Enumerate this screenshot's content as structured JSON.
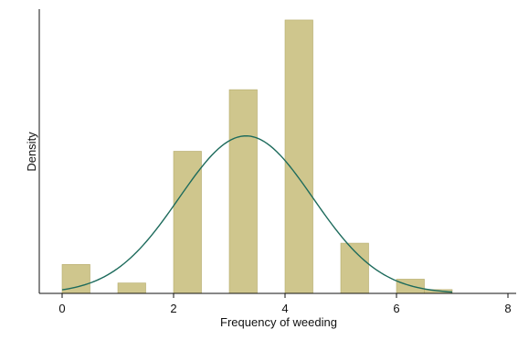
{
  "chart_data": {
    "type": "bar",
    "title": "",
    "xlabel": "Frequency of weeding",
    "ylabel": "Density",
    "xlim": [
      -0.5,
      8.2
    ],
    "ylim": [
      0,
      0.6
    ],
    "xticks": [
      "0",
      "2",
      "4",
      "6",
      "8"
    ],
    "y_ticks_labeled": false,
    "grid": false,
    "legend": "none",
    "bars": [
      {
        "x_start": 0.0,
        "x_end": 0.5,
        "density": 0.061
      },
      {
        "x_start": 1.0,
        "x_end": 1.5,
        "density": 0.022
      },
      {
        "x_start": 2.0,
        "x_end": 2.5,
        "density": 0.3
      },
      {
        "x_start": 3.0,
        "x_end": 3.5,
        "density": 0.43
      },
      {
        "x_start": 4.0,
        "x_end": 4.5,
        "density": 0.577
      },
      {
        "x_start": 5.0,
        "x_end": 5.5,
        "density": 0.106
      },
      {
        "x_start": 6.0,
        "x_end": 6.5,
        "density": 0.03
      },
      {
        "x_start": 6.5,
        "x_end": 7.0,
        "density": 0.008
      }
    ],
    "normal_overlay": {
      "mean": 3.3,
      "sd": 1.2,
      "x_range": [
        0.0,
        7.0
      ]
    },
    "colors": {
      "bar_fill": "#cfc68d",
      "bar_stroke": "#b5ab6a",
      "curve": "#1d6b5c",
      "axis": "#111111"
    }
  }
}
